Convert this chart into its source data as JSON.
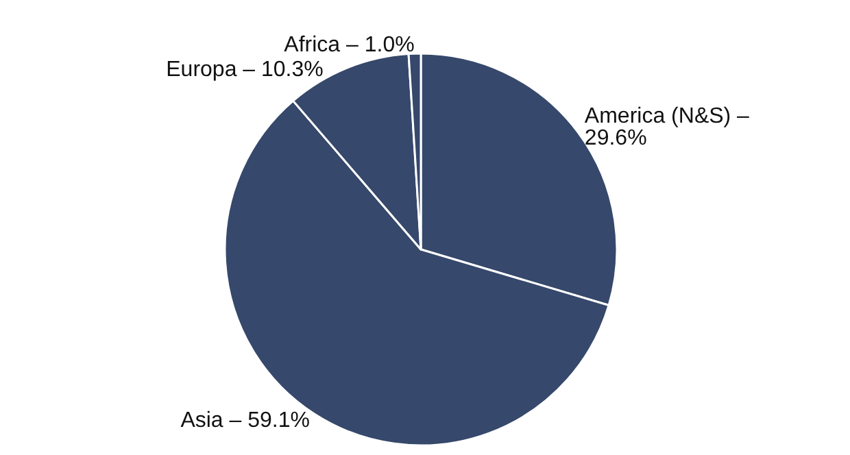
{
  "chart_data": {
    "type": "pie",
    "categories": [
      "America (N&S) – 29.6%",
      "Asia – 59.1%",
      "Europa – 10.3%",
      "Africa – 1.0%"
    ],
    "values": [
      29.6,
      59.1,
      10.3,
      1.0
    ],
    "colors": [
      "#36486b",
      "#36486b",
      "#36486b",
      "#36486b"
    ],
    "legend": false
  }
}
